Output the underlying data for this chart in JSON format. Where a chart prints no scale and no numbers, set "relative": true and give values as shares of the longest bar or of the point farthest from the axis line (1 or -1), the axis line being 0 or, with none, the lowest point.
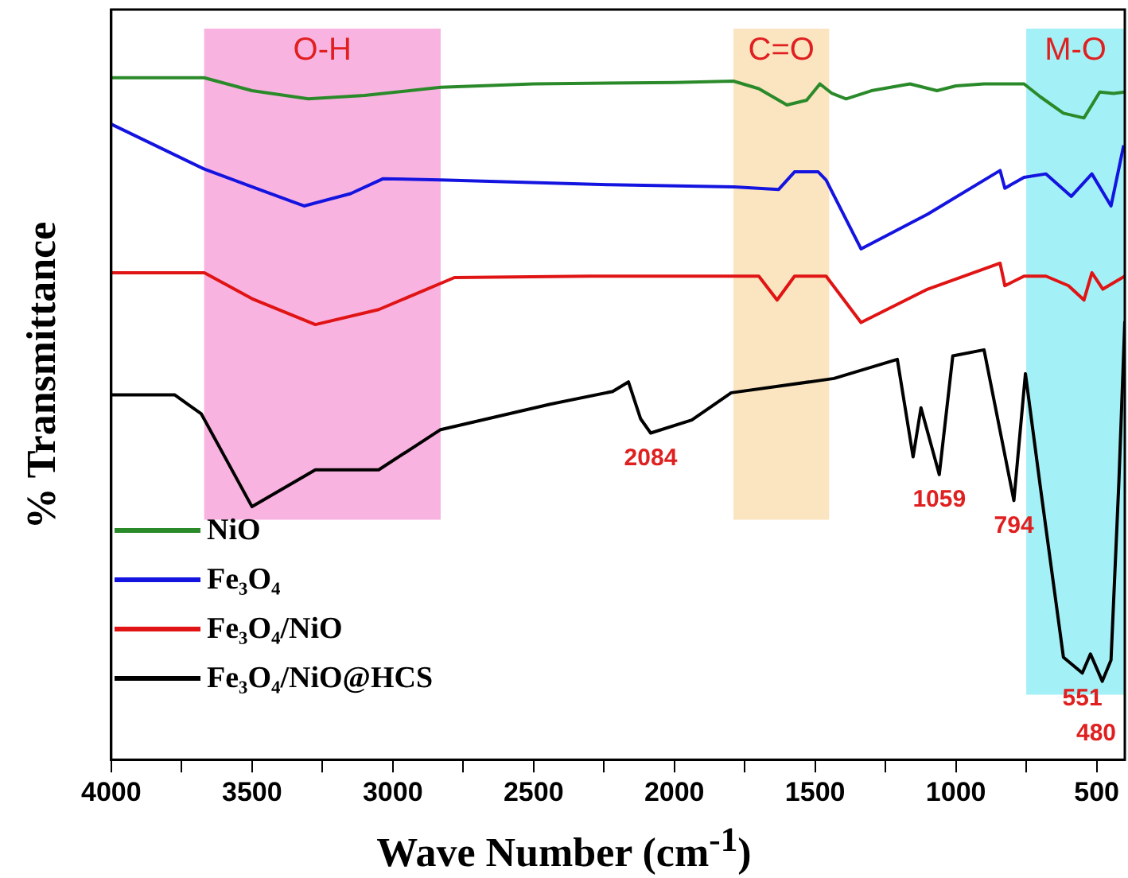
{
  "chart_data": {
    "type": "line",
    "relative": true,
    "xlabel": "Wave Number (cm$^{-1}$)",
    "ylabel": "% Transmittance",
    "xlim": [
      4000,
      400
    ],
    "xticks": [
      4000,
      {
        "value": 3750,
        "label": null
      },
      3500,
      {
        "value": 3250,
        "label": null
      },
      3000,
      {
        "value": 2750,
        "label": null
      },
      2500,
      {
        "value": 2250,
        "label": null
      },
      2000,
      {
        "value": 1750,
        "label": null
      },
      1500,
      {
        "value": 1250,
        "label": null
      },
      1000,
      {
        "value": 750,
        "label": null
      },
      500
    ],
    "legend": "bottom left",
    "marker": "none",
    "line_style": "solid",
    "grid": false,
    "bands": [
      {
        "axis": "x",
        "from": 3670,
        "to": 2830,
        "label": "O-H",
        "color": "#f9b3e1"
      },
      {
        "axis": "x",
        "from": 1790,
        "to": 1450,
        "label": "C=O",
        "color": "#fbe5c0"
      },
      {
        "axis": "x",
        "from": 750,
        "to": 400,
        "label": "M-O",
        "color": "#a3f1f6"
      }
    ],
    "annotations": [
      {
        "text": "2084",
        "x": 2084,
        "y": 0.479
      },
      {
        "text": "1059",
        "x": 1059,
        "y": 0.418
      },
      {
        "text": "794",
        "x": 794,
        "y": 0.38
      },
      {
        "text": "551",
        "x": 551,
        "y": 0.127
      },
      {
        "text": "480",
        "x": 480,
        "y": 0.115
      }
    ],
    "series": [
      {
        "name": "NiO",
        "color": "#2a8a2a",
        "x": [
          4000,
          3670,
          3500,
          3300,
          3100,
          2830,
          2500,
          2000,
          1790,
          1700,
          1600,
          1530,
          1483,
          1440,
          1390,
          1300,
          1163,
          1067,
          1000,
          900,
          758,
          700,
          618,
          545,
          489,
          440,
          400
        ],
        "values": [
          1.0,
          1.0,
          0.981,
          0.969,
          0.974,
          0.986,
          0.991,
          0.993,
          0.995,
          0.984,
          0.96,
          0.967,
          0.991,
          0.977,
          0.969,
          0.981,
          0.991,
          0.981,
          0.988,
          0.991,
          0.991,
          0.972,
          0.948,
          0.941,
          0.979,
          0.977,
          0.979
        ]
      },
      {
        "name": "Fe₃O₄",
        "color": "#1414e0",
        "x": [
          4000,
          3669,
          3500,
          3315,
          3150,
          3034,
          2830,
          2230,
          1787,
          1630,
          1573,
          1489,
          1461,
          1337,
          1100,
          843,
          826,
          758,
          680,
          590,
          517,
          449,
          404
        ],
        "values": [
          0.932,
          0.866,
          0.84,
          0.812,
          0.83,
          0.852,
          0.85,
          0.843,
          0.84,
          0.836,
          0.862,
          0.862,
          0.85,
          0.749,
          0.8,
          0.864,
          0.838,
          0.854,
          0.859,
          0.826,
          0.859,
          0.812,
          0.901
        ]
      },
      {
        "name": "Fe₃O₄/NiO",
        "color": "#e01414",
        "x": [
          4000,
          3669,
          3500,
          3275,
          3050,
          2781,
          2300,
          1787,
          1700,
          1635,
          1573,
          1461,
          1337,
          1100,
          843,
          826,
          758,
          680,
          600,
          545,
          517,
          478,
          400
        ],
        "values": [
          0.714,
          0.714,
          0.676,
          0.638,
          0.66,
          0.707,
          0.709,
          0.709,
          0.709,
          0.674,
          0.709,
          0.709,
          0.641,
          0.69,
          0.728,
          0.695,
          0.709,
          0.709,
          0.695,
          0.674,
          0.714,
          0.69,
          0.709
        ]
      },
      {
        "name": "Fe₃O₄/NiO@HCS",
        "color": "#000000",
        "x": [
          4000,
          3775,
          3680,
          3500,
          3275,
          3050,
          2830,
          2444,
          2219,
          2163,
          2120,
          2084,
          1938,
          1798,
          1433,
          1208,
          1152,
          1124,
          1059,
          1011,
          900,
          794,
          753,
          700,
          618,
          551,
          522,
          480,
          449,
          421,
          400
        ],
        "values": [
          0.535,
          0.535,
          0.507,
          0.371,
          0.425,
          0.425,
          0.484,
          0.521,
          0.54,
          0.554,
          0.5,
          0.479,
          0.498,
          0.538,
          0.559,
          0.587,
          0.444,
          0.516,
          0.418,
          0.592,
          0.601,
          0.38,
          0.566,
          0.4,
          0.15,
          0.127,
          0.155,
          0.115,
          0.146,
          0.408,
          0.643
        ]
      }
    ]
  }
}
